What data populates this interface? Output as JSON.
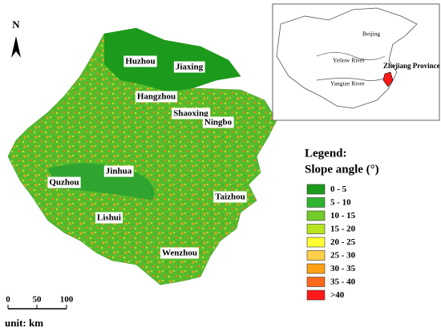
{
  "north": "N",
  "cities": [
    "Huzhou",
    "Jiaxing",
    "Hangzhou",
    "Shaoxing",
    "Ningbo",
    "Jinhua",
    "Quzhou",
    "Taizhou",
    "Lishui",
    "Wenzhou"
  ],
  "legend": {
    "title": "Legend:",
    "subtitle": "Slope angle (°)",
    "items": [
      {
        "label": "0 - 5",
        "color": "#1c9a1c"
      },
      {
        "label": "5 - 10",
        "color": "#2fb52f"
      },
      {
        "label": "10 - 15",
        "color": "#72cc2a"
      },
      {
        "label": "15 - 20",
        "color": "#b8e61e"
      },
      {
        "label": "20 - 25",
        "color": "#ffff33"
      },
      {
        "label": "25 - 30",
        "color": "#ffcf4a"
      },
      {
        "label": "30 - 35",
        "color": "#ffa214"
      },
      {
        "label": "35 - 40",
        "color": "#ff6a1a"
      },
      {
        "label": ">40",
        "color": "#ff1a1a"
      }
    ]
  },
  "scale_bar": {
    "labels": [
      "0",
      "50",
      "100"
    ],
    "unit": "unit: km"
  },
  "inset": {
    "labels": [
      "Beijing",
      "Yellow River",
      "Yangtze River",
      "Zhejiang Province"
    ]
  }
}
